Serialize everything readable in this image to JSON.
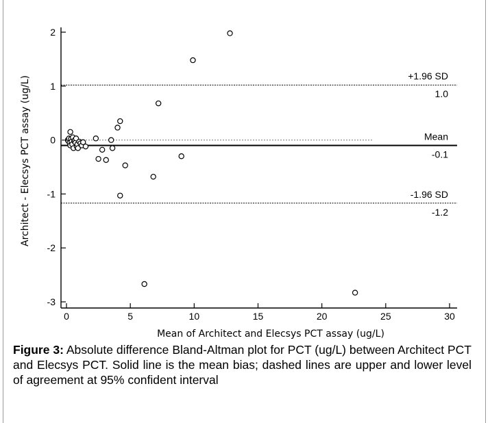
{
  "chart_data": {
    "type": "scatter",
    "xlabel": "Mean of Architect and Elecsys PCT assay (ug/L)",
    "ylabel": "Architect - Elecsys PCT assay (ug/L)",
    "xlim": [
      0,
      30
    ],
    "ylim": [
      -3,
      2
    ],
    "xticks": [
      0,
      5,
      10,
      15,
      20,
      25,
      30
    ],
    "yticks": [
      -3,
      -2,
      -1,
      0,
      1,
      2
    ],
    "grid": false,
    "points": [
      {
        "x": 0.1,
        "y": 0.0
      },
      {
        "x": 0.15,
        "y": -0.02
      },
      {
        "x": 0.2,
        "y": 0.03
      },
      {
        "x": 0.25,
        "y": -0.05
      },
      {
        "x": 0.3,
        "y": 0.15
      },
      {
        "x": 0.3,
        "y": -0.1
      },
      {
        "x": 0.35,
        "y": 0.02
      },
      {
        "x": 0.4,
        "y": -0.03
      },
      {
        "x": 0.45,
        "y": -0.08
      },
      {
        "x": 0.5,
        "y": 0.05
      },
      {
        "x": 0.55,
        "y": -0.15
      },
      {
        "x": 0.6,
        "y": -0.02
      },
      {
        "x": 0.65,
        "y": 0.0
      },
      {
        "x": 0.7,
        "y": -0.05
      },
      {
        "x": 0.75,
        "y": 0.03
      },
      {
        "x": 0.8,
        "y": -0.12
      },
      {
        "x": 0.85,
        "y": -0.08
      },
      {
        "x": 0.9,
        "y": -0.15
      },
      {
        "x": 1.0,
        "y": -0.03
      },
      {
        "x": 1.1,
        "y": -0.06
      },
      {
        "x": 1.2,
        "y": -0.1
      },
      {
        "x": 1.3,
        "y": -0.04
      },
      {
        "x": 1.5,
        "y": -0.12
      },
      {
        "x": 2.3,
        "y": 0.03
      },
      {
        "x": 2.5,
        "y": -0.35
      },
      {
        "x": 2.8,
        "y": -0.18
      },
      {
        "x": 3.1,
        "y": -0.37
      },
      {
        "x": 3.5,
        "y": 0.0
      },
      {
        "x": 3.6,
        "y": -0.15
      },
      {
        "x": 4.0,
        "y": 0.23
      },
      {
        "x": 4.2,
        "y": 0.35
      },
      {
        "x": 4.2,
        "y": -1.03
      },
      {
        "x": 4.6,
        "y": -0.47
      },
      {
        "x": 6.1,
        "y": -2.67
      },
      {
        "x": 6.8,
        "y": -0.68
      },
      {
        "x": 7.2,
        "y": 0.68
      },
      {
        "x": 9.0,
        "y": -0.3
      },
      {
        "x": 9.9,
        "y": 1.48
      },
      {
        "x": 12.8,
        "y": 1.98
      },
      {
        "x": 22.6,
        "y": -2.83
      }
    ],
    "reference_lines": [
      {
        "name": "+1.96 SD",
        "value_label": "1.0",
        "y": 1.02,
        "style": "dashed"
      },
      {
        "name": "Mean",
        "value_label": "-0.1",
        "y": -0.1,
        "style": "solid"
      },
      {
        "name": "-1.96 SD",
        "value_label": "-1.2",
        "y": -1.17,
        "style": "dashed"
      }
    ],
    "zero_line": {
      "y": 0,
      "x_end": 24,
      "style": "dotted"
    }
  },
  "caption": {
    "label": "Figure 3:",
    "text": " Absolute difference Bland-Altman plot for PCT (ug/L) between Architect PCT and Elecsys PCT. Solid line is the mean bias; dashed lines are upper and lower level of agreement at 95% confident interval"
  }
}
